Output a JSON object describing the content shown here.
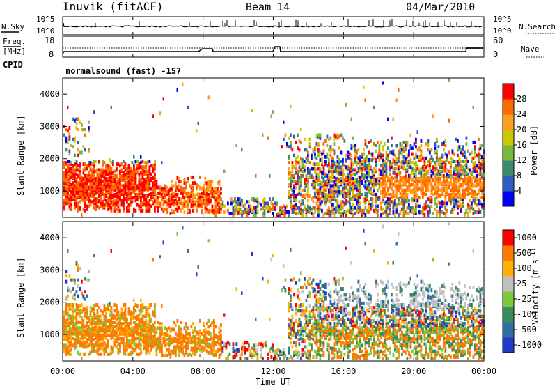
{
  "header": {
    "station": "Inuvik (fitACF)",
    "beam": "Beam 14",
    "date": "04/Mar/2010"
  },
  "noise_panel": {
    "left_label": "N.Sky",
    "right_label": "N.Search",
    "tick_top": "10^5",
    "tick_bottom": "10^0",
    "right_tick_top": "10^5",
    "right_tick_bottom": "10^0"
  },
  "freq_panel": {
    "left_label_1": "Freq.",
    "left_label_2": "[MHz]",
    "right_label": "Nave",
    "tick_top": "18",
    "tick_bottom": "8",
    "right_tick_top": "60",
    "right_tick_bottom": "0"
  },
  "cpid": {
    "label": "CPID",
    "mode": "normalsound (fast) -157"
  },
  "chart_data": [
    {
      "type": "heatmap",
      "title": "",
      "xlabel": "Time UT",
      "ylabel": "Slant Range [km]",
      "xlim": [
        "00:00",
        "24:00"
      ],
      "ylim": [
        180,
        4500
      ],
      "x_ticks": [
        "00:00",
        "04:00",
        "08:00",
        "12:00",
        "16:00",
        "20:00",
        "00:00"
      ],
      "y_ticks": [
        "1000",
        "2000",
        "3000",
        "4000"
      ],
      "colorbar": {
        "label": "Power [dB]",
        "ticks": [
          "4",
          "8",
          "12",
          "16",
          "20",
          "24",
          "28"
        ],
        "colors": [
          "#0000ff",
          "#2e5fc0",
          "#3b8c6e",
          "#78b83c",
          "#c8c800",
          "#ff9d1e",
          "#ff6a00",
          "#ff0000"
        ]
      },
      "regions": [
        {
          "t0": 0.0,
          "t1": 5.0,
          "r0": 300,
          "r1": 2000,
          "level": "high"
        },
        {
          "t0": 5.0,
          "t1": 9.0,
          "r0": 300,
          "r1": 1500,
          "level": "high"
        },
        {
          "t0": 13.0,
          "t1": 14.0,
          "r0": 900,
          "r1": 1500,
          "level": "high"
        },
        {
          "t0": 16.0,
          "t1": 24.0,
          "r0": 500,
          "r1": 2500,
          "level": "medium"
        }
      ]
    },
    {
      "type": "heatmap",
      "title": "",
      "xlabel": "Time UT",
      "ylabel": "Slant Range [km]",
      "xlim": [
        "00:00",
        "24:00"
      ],
      "ylim": [
        180,
        4500
      ],
      "x_ticks": [
        "00:00",
        "04:00",
        "08:00",
        "12:00",
        "16:00",
        "20:00",
        "00:00"
      ],
      "y_ticks": [
        "1000",
        "2000",
        "3000",
        "4000"
      ],
      "colorbar": {
        "label": "Velocity [m s^-1]",
        "ticks": [
          "1000",
          "500",
          "100",
          "25",
          "-25",
          "-100",
          "-500",
          "-1000"
        ],
        "colors": [
          "#1e3cc8",
          "#2e6fa8",
          "#3a8c5a",
          "#7ec83c",
          "#c0c0c0",
          "#ffb000",
          "#ff7a00",
          "#ff0000"
        ]
      }
    }
  ]
}
